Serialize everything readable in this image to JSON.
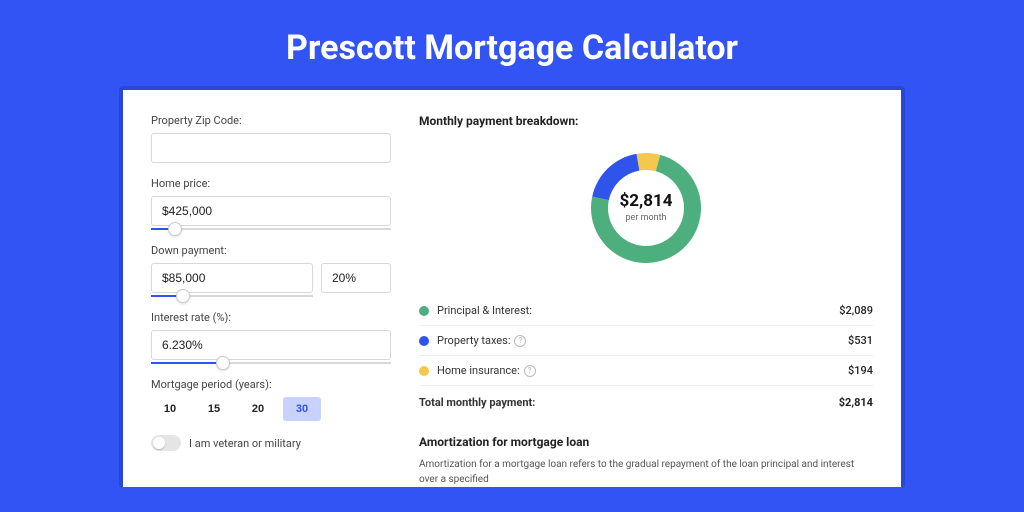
{
  "page": {
    "title": "Prescott Mortgage Calculator",
    "background_color": "#3254f4",
    "card_wrap_color": "#2a46d6",
    "card_color": "#ffffff"
  },
  "form": {
    "zip": {
      "label": "Property Zip Code:",
      "value": ""
    },
    "home_price": {
      "label": "Home price:",
      "value": "$425,000",
      "slider_pct": 10
    },
    "down_payment": {
      "label": "Down payment:",
      "amount": "$85,000",
      "pct": "20%",
      "slider_pct": 20
    },
    "interest_rate": {
      "label": "Interest rate (%):",
      "value": "6.230%",
      "slider_pct": 30
    },
    "mortgage_period": {
      "label": "Mortgage period (years):",
      "options": [
        "10",
        "15",
        "20",
        "30"
      ],
      "active_index": 3
    },
    "veteran": {
      "label": "I am veteran or military",
      "on": false
    }
  },
  "breakdown": {
    "title": "Monthly payment breakdown:",
    "center_value": "$2,814",
    "center_sub": "per month",
    "donut": {
      "type": "donut",
      "radius_outer": 55,
      "radius_inner": 38,
      "background_color": "#ffffff",
      "slices": [
        {
          "label": "home_insurance",
          "value": 194,
          "color": "#f2c94c",
          "start_deg": -10,
          "end_deg": 15
        },
        {
          "label": "property_taxes",
          "value": 531,
          "color": "#2f54eb",
          "start_deg": -78,
          "end_deg": -10
        },
        {
          "label": "principal_interest",
          "value": 2089,
          "color": "#4caf7d",
          "start_deg": 15,
          "end_deg": 282
        }
      ]
    },
    "items": [
      {
        "dot": "#4caf7d",
        "label": "Principal & Interest:",
        "info": false,
        "amount": "$2,089"
      },
      {
        "dot": "#2f54eb",
        "label": "Property taxes:",
        "info": true,
        "amount": "$531"
      },
      {
        "dot": "#f2c94c",
        "label": "Home insurance:",
        "info": true,
        "amount": "$194"
      }
    ],
    "total": {
      "label": "Total monthly payment:",
      "amount": "$2,814"
    }
  },
  "amortization": {
    "title": "Amortization for mortgage loan",
    "text": "Amortization for a mortgage loan refers to the gradual repayment of the loan principal and interest over a specified"
  }
}
